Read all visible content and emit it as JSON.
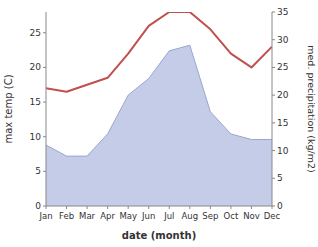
{
  "chart_data": {
    "type": "line",
    "xlabel": "date (month)",
    "ylabel": "max temp (C)",
    "y2label": "med. precipitation (kg/m2)",
    "categories": [
      "Jan",
      "Feb",
      "Mar",
      "Apr",
      "May",
      "Jun",
      "Jul",
      "Aug",
      "Sep",
      "Oct",
      "Nov",
      "Dec"
    ],
    "series": [
      {
        "type": "line",
        "color": "#c0504d",
        "values": [
          17,
          16.5,
          17.5,
          18.5,
          22,
          26,
          28,
          28,
          25.5,
          22,
          20,
          23
        ]
      },
      {
        "type": "area",
        "axis": "y2",
        "color": "#c5cce8",
        "values": [
          11,
          9,
          9,
          13,
          20,
          23,
          28,
          29,
          17,
          13,
          12,
          12
        ]
      }
    ],
    "ylim": [
      0,
      28
    ],
    "yticks": [
      0,
      5,
      10,
      15,
      20,
      25
    ],
    "y2lim": [
      0,
      35
    ],
    "y2ticks": [
      0,
      5,
      10,
      15,
      20,
      25,
      30,
      35
    ],
    "grid": false
  }
}
